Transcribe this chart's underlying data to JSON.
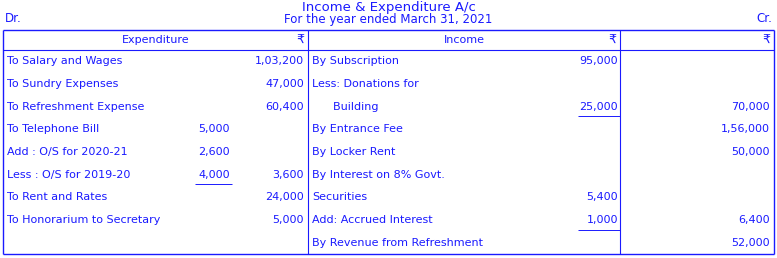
{
  "title": "Income & Expenditure A/c",
  "subtitle": "For the year ended March 31, 2021",
  "dr": "Dr.",
  "cr": "Cr.",
  "header_left": "Expenditure",
  "header_right": "Income",
  "rupee": "₹",
  "left_rows": [
    {
      "col1": "To Salary and Wages",
      "col2": "",
      "col3": "1,03,200",
      "ul2": false
    },
    {
      "col1": "To Sundry Expenses",
      "col2": "",
      "col3": "47,000",
      "ul2": false
    },
    {
      "col1": "To Refreshment Expense",
      "col2": "",
      "col3": "60,400",
      "ul2": false
    },
    {
      "col1": "To Telephone Bill",
      "col2": "5,000",
      "col3": "",
      "ul2": false
    },
    {
      "col1": "Add : O/S for 2020-21",
      "col2": "2,600",
      "col3": "",
      "ul2": false
    },
    {
      "col1": "Less : O/S for 2019-20",
      "col2": "4,000",
      "col3": "3,600",
      "ul2": true
    },
    {
      "col1": "To Rent and Rates",
      "col2": "",
      "col3": "24,000",
      "ul2": false
    },
    {
      "col1": "To Honorarium to Secretary",
      "col2": "",
      "col3": "5,000",
      "ul2": false
    }
  ],
  "right_rows": [
    {
      "col1": "By Subscription",
      "col2": "95,000",
      "col3": "",
      "ul2": false
    },
    {
      "col1": "Less: Donations for",
      "col2": "",
      "col3": "",
      "ul2": false
    },
    {
      "col1": "      Building",
      "col2": "25,000",
      "col3": "70,000",
      "ul2": true
    },
    {
      "col1": "By Entrance Fee",
      "col2": "",
      "col3": "1,56,000",
      "ul2": false
    },
    {
      "col1": "By Locker Rent",
      "col2": "",
      "col3": "50,000",
      "ul2": false
    },
    {
      "col1": "By Interest on 8% Govt.",
      "col2": "",
      "col3": "",
      "ul2": false
    },
    {
      "col1": "Securities",
      "col2": "5,400",
      "col3": "",
      "ul2": false
    },
    {
      "col1": "Add: Accrued Interest",
      "col2": "1,000",
      "col3": "6,400",
      "ul2": true
    },
    {
      "col1": "By Revenue from Refreshment",
      "col2": "",
      "col3": "52,000",
      "ul2": false
    }
  ],
  "text_color": "#1a1aff",
  "border_color": "#1a1aff",
  "bg_color": "#ffffff",
  "font_size": 8.0,
  "title_font_size": 9.5
}
